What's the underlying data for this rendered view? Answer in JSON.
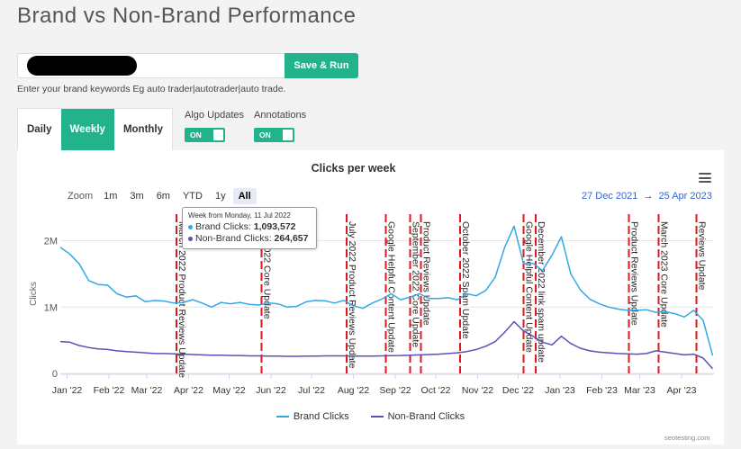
{
  "page": {
    "title": "Brand vs Non-Brand Performance"
  },
  "keywords": {
    "value": "",
    "save_label": "Save & Run",
    "hint": "Enter your brand keywords Eg auto trader|autotrader|auto trade."
  },
  "tabs": [
    {
      "label": "Daily",
      "active": false
    },
    {
      "label": "Weekly",
      "active": true
    },
    {
      "label": "Monthly",
      "active": false
    }
  ],
  "toggles": {
    "algo_updates": {
      "label": "Algo Updates",
      "state": "ON"
    },
    "annotations": {
      "label": "Annotations",
      "state": "ON"
    }
  },
  "toolbar": {
    "zoom_label": "Zoom",
    "zoom_options": [
      "1m",
      "3m",
      "6m",
      "YTD",
      "1y",
      "All"
    ],
    "zoom_selected": "All",
    "range_from": "27 Dec 2021",
    "range_arrow": "→",
    "range_to": "25 Apr 2023",
    "menu_icon": "hamburger-menu-icon"
  },
  "tooltip": {
    "title": "Week from Monday, 11 Jul 2022",
    "brand_label": "Brand Clicks: ",
    "brand_value": "1,093,572",
    "nonbrand_label": "Non-Brand Clicks: ",
    "nonbrand_value": "264,657"
  },
  "credit": "seotesting.com",
  "chart_data": {
    "type": "line",
    "title": "Clicks per week",
    "ylabel": "Clicks",
    "ylim": [
      0,
      2400000
    ],
    "xlim": [
      "2021-12-27",
      "2023-04-25"
    ],
    "y_ticks": [
      {
        "value": 0,
        "label": "0"
      },
      {
        "value": 1000000,
        "label": "1M"
      },
      {
        "value": 2000000,
        "label": "2M"
      }
    ],
    "x_ticks": [
      {
        "date": "2022-01-01",
        "label": "Jan '22"
      },
      {
        "date": "2022-02-01",
        "label": "Feb '22"
      },
      {
        "date": "2022-03-01",
        "label": "Mar '22"
      },
      {
        "date": "2022-04-01",
        "label": "Apr '22"
      },
      {
        "date": "2022-05-01",
        "label": "May '22"
      },
      {
        "date": "2022-06-01",
        "label": "Jun '22"
      },
      {
        "date": "2022-07-01",
        "label": "Jul '22"
      },
      {
        "date": "2022-08-01",
        "label": "Aug '22"
      },
      {
        "date": "2022-09-01",
        "label": "Sep '22"
      },
      {
        "date": "2022-10-01",
        "label": "Oct '22"
      },
      {
        "date": "2022-11-01",
        "label": "Nov '22"
      },
      {
        "date": "2022-12-01",
        "label": "Dec '22"
      },
      {
        "date": "2023-01-01",
        "label": "Jan '23"
      },
      {
        "date": "2023-02-01",
        "label": "Feb '23"
      },
      {
        "date": "2023-03-01",
        "label": "Mar '23"
      },
      {
        "date": "2023-04-01",
        "label": "Apr '23"
      }
    ],
    "grid": true,
    "legend": "bottom-center",
    "series": [
      {
        "name": "Brand Clicks",
        "color": "#31a9e6",
        "points": [
          [
            "2021-12-27",
            1900000
          ],
          [
            "2022-01-03",
            1800000
          ],
          [
            "2022-01-10",
            1650000
          ],
          [
            "2022-01-17",
            1400000
          ],
          [
            "2022-01-24",
            1340000
          ],
          [
            "2022-01-31",
            1330000
          ],
          [
            "2022-02-07",
            1200000
          ],
          [
            "2022-02-14",
            1150000
          ],
          [
            "2022-02-21",
            1170000
          ],
          [
            "2022-02-28",
            1080000
          ],
          [
            "2022-03-07",
            1100000
          ],
          [
            "2022-03-14",
            1090000
          ],
          [
            "2022-03-21",
            1060000
          ],
          [
            "2022-03-28",
            1070000
          ],
          [
            "2022-04-04",
            1110000
          ],
          [
            "2022-04-11",
            1060000
          ],
          [
            "2022-04-18",
            1000000
          ],
          [
            "2022-04-25",
            1070000
          ],
          [
            "2022-05-02",
            1050000
          ],
          [
            "2022-05-09",
            1070000
          ],
          [
            "2022-05-16",
            1040000
          ],
          [
            "2022-05-23",
            1030000
          ],
          [
            "2022-05-30",
            1060000
          ],
          [
            "2022-06-06",
            1050000
          ],
          [
            "2022-06-13",
            1000000
          ],
          [
            "2022-06-20",
            1010000
          ],
          [
            "2022-06-27",
            1080000
          ],
          [
            "2022-07-04",
            1100000
          ],
          [
            "2022-07-11",
            1093572
          ],
          [
            "2022-07-18",
            1060000
          ],
          [
            "2022-07-25",
            1100000
          ],
          [
            "2022-08-01",
            1020000
          ],
          [
            "2022-08-08",
            980000
          ],
          [
            "2022-08-15",
            1060000
          ],
          [
            "2022-08-22",
            1120000
          ],
          [
            "2022-08-29",
            1200000
          ],
          [
            "2022-09-05",
            1110000
          ],
          [
            "2022-09-12",
            1150000
          ],
          [
            "2022-09-19",
            1200000
          ],
          [
            "2022-09-26",
            1130000
          ],
          [
            "2022-10-03",
            1130000
          ],
          [
            "2022-10-10",
            1140000
          ],
          [
            "2022-10-17",
            1110000
          ],
          [
            "2022-10-24",
            1200000
          ],
          [
            "2022-10-31",
            1170000
          ],
          [
            "2022-11-07",
            1250000
          ],
          [
            "2022-11-14",
            1450000
          ],
          [
            "2022-11-21",
            1900000
          ],
          [
            "2022-11-28",
            2220000
          ],
          [
            "2022-12-05",
            1650000
          ],
          [
            "2022-12-12",
            1660000
          ],
          [
            "2022-12-19",
            1550000
          ],
          [
            "2022-12-26",
            1780000
          ],
          [
            "2023-01-02",
            2060000
          ],
          [
            "2023-01-09",
            1500000
          ],
          [
            "2023-01-16",
            1260000
          ],
          [
            "2023-01-23",
            1120000
          ],
          [
            "2023-01-30",
            1050000
          ],
          [
            "2023-02-06",
            1000000
          ],
          [
            "2023-02-13",
            970000
          ],
          [
            "2023-02-20",
            950000
          ],
          [
            "2023-02-27",
            950000
          ],
          [
            "2023-03-06",
            960000
          ],
          [
            "2023-03-13",
            920000
          ],
          [
            "2023-03-20",
            930000
          ],
          [
            "2023-03-27",
            900000
          ],
          [
            "2023-04-03",
            850000
          ],
          [
            "2023-04-10",
            950000
          ],
          [
            "2023-04-17",
            800000
          ],
          [
            "2023-04-24",
            270000
          ]
        ]
      },
      {
        "name": "Non-Brand Clicks",
        "color": "#5b50b8",
        "points": [
          [
            "2021-12-27",
            480000
          ],
          [
            "2022-01-03",
            470000
          ],
          [
            "2022-01-10",
            420000
          ],
          [
            "2022-01-17",
            390000
          ],
          [
            "2022-01-24",
            370000
          ],
          [
            "2022-01-31",
            360000
          ],
          [
            "2022-02-07",
            340000
          ],
          [
            "2022-02-14",
            330000
          ],
          [
            "2022-02-21",
            320000
          ],
          [
            "2022-02-28",
            310000
          ],
          [
            "2022-03-07",
            300000
          ],
          [
            "2022-03-14",
            300000
          ],
          [
            "2022-03-21",
            295000
          ],
          [
            "2022-03-28",
            290000
          ],
          [
            "2022-04-04",
            285000
          ],
          [
            "2022-04-11",
            280000
          ],
          [
            "2022-04-18",
            275000
          ],
          [
            "2022-04-25",
            275000
          ],
          [
            "2022-05-02",
            270000
          ],
          [
            "2022-05-09",
            270000
          ],
          [
            "2022-05-16",
            265000
          ],
          [
            "2022-05-23",
            265000
          ],
          [
            "2022-05-30",
            262000
          ],
          [
            "2022-06-06",
            260000
          ],
          [
            "2022-06-13",
            258000
          ],
          [
            "2022-06-20",
            258000
          ],
          [
            "2022-06-27",
            260000
          ],
          [
            "2022-07-04",
            262000
          ],
          [
            "2022-07-11",
            264657
          ],
          [
            "2022-07-18",
            265000
          ],
          [
            "2022-07-25",
            265000
          ],
          [
            "2022-08-01",
            262000
          ],
          [
            "2022-08-08",
            260000
          ],
          [
            "2022-08-15",
            262000
          ],
          [
            "2022-08-22",
            265000
          ],
          [
            "2022-08-29",
            268000
          ],
          [
            "2022-09-05",
            270000
          ],
          [
            "2022-09-12",
            275000
          ],
          [
            "2022-09-19",
            280000
          ],
          [
            "2022-09-26",
            285000
          ],
          [
            "2022-10-03",
            290000
          ],
          [
            "2022-10-10",
            300000
          ],
          [
            "2022-10-17",
            310000
          ],
          [
            "2022-10-24",
            330000
          ],
          [
            "2022-10-31",
            360000
          ],
          [
            "2022-11-07",
            410000
          ],
          [
            "2022-11-14",
            480000
          ],
          [
            "2022-11-21",
            620000
          ],
          [
            "2022-11-28",
            780000
          ],
          [
            "2022-12-05",
            640000
          ],
          [
            "2022-12-12",
            560000
          ],
          [
            "2022-12-19",
            470000
          ],
          [
            "2022-12-26",
            430000
          ],
          [
            "2023-01-02",
            560000
          ],
          [
            "2023-01-09",
            450000
          ],
          [
            "2023-01-16",
            380000
          ],
          [
            "2023-01-23",
            340000
          ],
          [
            "2023-01-30",
            320000
          ],
          [
            "2023-02-06",
            310000
          ],
          [
            "2023-02-13",
            300000
          ],
          [
            "2023-02-20",
            295000
          ],
          [
            "2023-02-27",
            290000
          ],
          [
            "2023-03-06",
            300000
          ],
          [
            "2023-03-13",
            340000
          ],
          [
            "2023-03-20",
            320000
          ],
          [
            "2023-03-27",
            300000
          ],
          [
            "2023-04-03",
            280000
          ],
          [
            "2023-04-10",
            290000
          ],
          [
            "2023-04-17",
            230000
          ],
          [
            "2023-04-24",
            70000
          ]
        ]
      }
    ],
    "annotations": [
      {
        "date": "2022-03-23",
        "label": "March 2022 Product Reviews Update"
      },
      {
        "date": "2022-05-25",
        "label": "May 2022 Core Update"
      },
      {
        "date": "2022-07-27",
        "label": "July 2022 Product Reviews Update"
      },
      {
        "date": "2022-08-25",
        "label": "Google Helpful Content Update"
      },
      {
        "date": "2022-09-12",
        "label": "September 2022 Core Update"
      },
      {
        "date": "2022-09-20",
        "label": "Product Reviews Update"
      },
      {
        "date": "2022-10-19",
        "label": "October 2022 Spam Update"
      },
      {
        "date": "2022-12-05",
        "label": "Google Helpful Content Update"
      },
      {
        "date": "2022-12-14",
        "label": "December 2022 link spam update"
      },
      {
        "date": "2023-02-21",
        "label": "Product Reviews Update"
      },
      {
        "date": "2023-03-15",
        "label": "March 2023 Core Update"
      },
      {
        "date": "2023-04-12",
        "label": "Reviews Update"
      }
    ]
  }
}
